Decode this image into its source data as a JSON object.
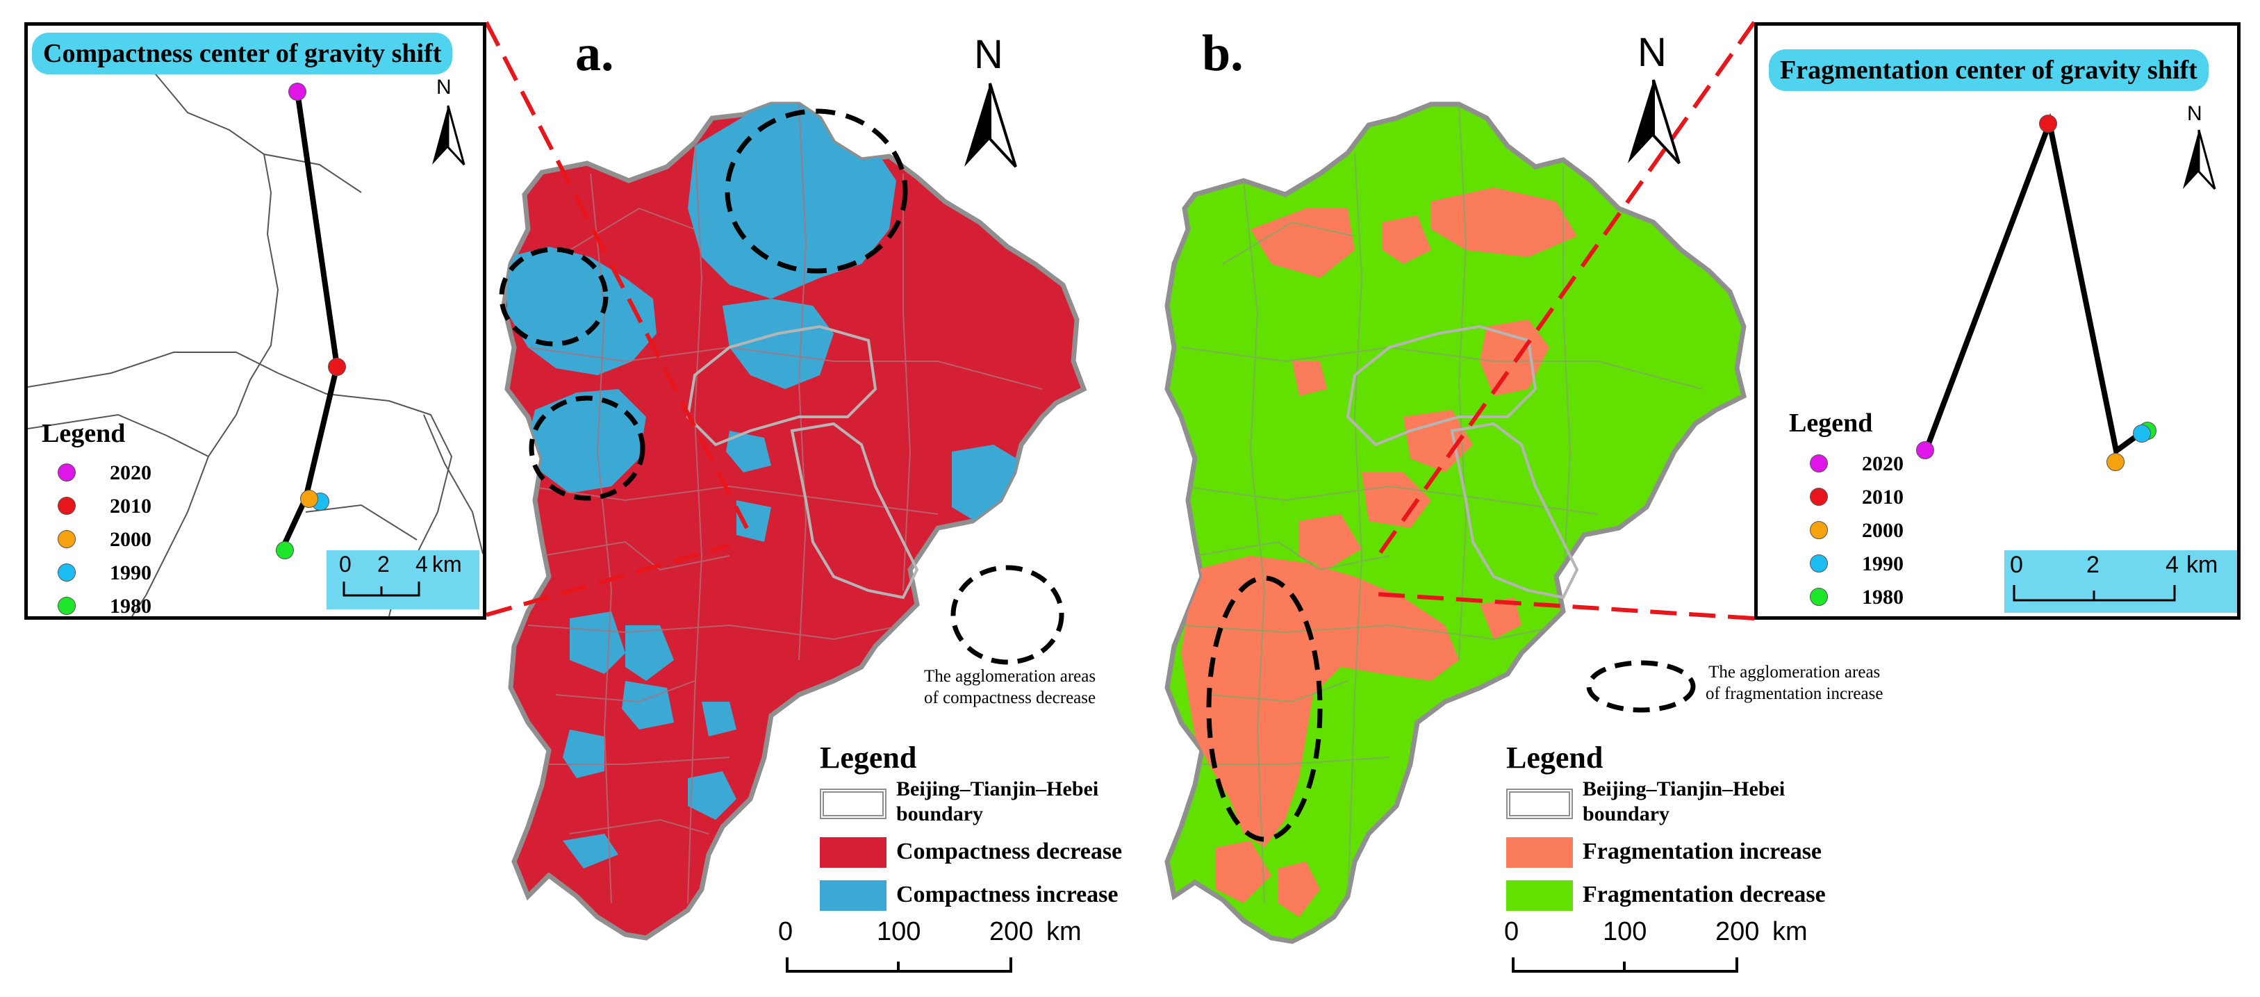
{
  "panel_a": {
    "label": "a.",
    "inset_title": "Compactness center of gravity  shift",
    "inset_legend_title": "Legend",
    "years": [
      {
        "label": "2020",
        "color": "#e016e8"
      },
      {
        "label": "2010",
        "color": "#e8161a"
      },
      {
        "label": "2000",
        "color": "#f5a20e"
      },
      {
        "label": "1990",
        "color": "#1bbdf2"
      },
      {
        "label": "1980",
        "color": "#1ee62a"
      }
    ],
    "inset_scale": {
      "labels": [
        "0",
        "2",
        "4"
      ],
      "unit": "km"
    },
    "north": "N",
    "note_line1": "The agglomeration areas",
    "note_line2": "of compactness decrease",
    "legend": {
      "title": "Legend",
      "boundary_line1": "Beijing–Tianjin–Hebei",
      "boundary_line2": "boundary",
      "class1": "Compactness decrease",
      "class2": "Compactness increase",
      "color1": "#d41f35",
      "color2": "#3ba9d3"
    },
    "scale": {
      "labels": [
        "0",
        "100",
        "200"
      ],
      "unit": "km"
    }
  },
  "panel_b": {
    "label": "b.",
    "inset_title": "Fragmentation center of gravity  shift",
    "inset_legend_title": "Legend",
    "years": [
      {
        "label": "2020",
        "color": "#e016e8"
      },
      {
        "label": "2010",
        "color": "#e8161a"
      },
      {
        "label": "2000",
        "color": "#f5a20e"
      },
      {
        "label": "1990",
        "color": "#1bbdf2"
      },
      {
        "label": "1980",
        "color": "#1ee62a"
      }
    ],
    "inset_scale": {
      "labels": [
        "0",
        "2",
        "4"
      ],
      "unit": "km"
    },
    "north": "N",
    "note_line1": "The agglomeration areas",
    "note_line2": "of fragmentation increase",
    "legend": {
      "title": "Legend",
      "boundary_line1": "Beijing–Tianjin–Hebei",
      "boundary_line2": "boundary",
      "class1": "Fragmentation increase",
      "class2": "Fragmentation decrease",
      "color1": "#fb7c5a",
      "color2": "#62e000"
    },
    "scale": {
      "labels": [
        "0",
        "100",
        "200"
      ],
      "unit": "km"
    }
  }
}
